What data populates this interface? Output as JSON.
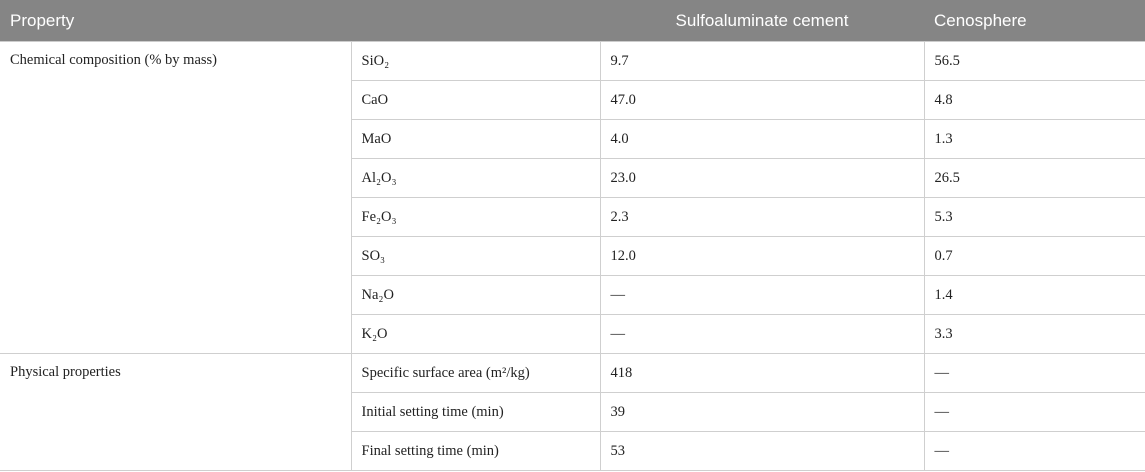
{
  "header": {
    "columns": [
      "Property",
      "Sulfoaluminate cement",
      "Cenosphere"
    ]
  },
  "groups": [
    {
      "label": "Chemical composition (% by mass)",
      "rows": [
        [
          "SiO₂",
          "9.7",
          "56.5"
        ],
        [
          "CaO",
          "47.0",
          "4.8"
        ],
        [
          "MaO",
          "4.0",
          "1.3"
        ],
        [
          "Al₂O₃",
          "23.0",
          "26.5"
        ],
        [
          "Fe₂O₃",
          "2.3",
          "5.3"
        ],
        [
          "SO₃",
          "12.0",
          "0.7"
        ],
        [
          "Na₂O",
          "—",
          "1.4"
        ],
        [
          "K₂O",
          "—",
          "3.3"
        ]
      ]
    },
    {
      "label": "Physical properties",
      "rows": [
        [
          "Specific surface area (m²/kg)",
          "418",
          "—"
        ],
        [
          "Initial setting time (min)",
          "39",
          "—"
        ],
        [
          "Final setting time (min)",
          "53",
          "—"
        ]
      ]
    }
  ]
}
